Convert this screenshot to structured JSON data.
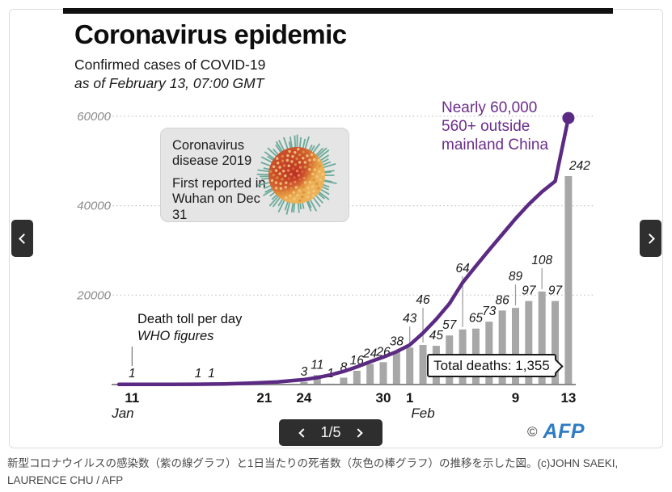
{
  "colors": {
    "line_purple": "#5b2a82",
    "annotation_purple": "#6b2d8b",
    "bar_gray": "#a7a7a7",
    "afp_blue": "#2e7cc3",
    "button_dark": "#2f2f2f"
  },
  "chart_data": {
    "type": "combo",
    "title": "Coronavirus epidemic",
    "subtitle": "Confirmed cases of COVID-19",
    "dateline": "as of February 13, 07:00 GMT",
    "infobox": {
      "para1": "Coronavirus disease 2019",
      "para2": "First reported in Wuhan on Dec 31"
    },
    "x_axis": {
      "unit": "days since Jan 10",
      "ticks": [
        {
          "label": "11",
          "day": 1
        },
        {
          "label": "21",
          "day": 11
        },
        {
          "label": "24",
          "day": 14
        },
        {
          "label": "30",
          "day": 20
        },
        {
          "label": "1",
          "day": 22
        },
        {
          "label": "9",
          "day": 30
        },
        {
          "label": "13",
          "day": 34
        }
      ],
      "months": [
        {
          "label": "Jan",
          "day": 0.3
        },
        {
          "label": "Feb",
          "day": 23
        }
      ]
    },
    "y_axis": {
      "ticks": [
        {
          "label": "20000",
          "value": 20000
        },
        {
          "label": "40000",
          "value": 40000
        },
        {
          "label": "60000",
          "value": 60000
        }
      ],
      "range": [
        0,
        62000
      ],
      "gridlines": "dotted"
    },
    "line_series": {
      "name": "Confirmed cases of COVID-19 (cumulative)",
      "color": "#5b2a82",
      "annotation": [
        "Nearly 60,000",
        "560+ outside",
        "mainland China"
      ],
      "points": [
        [
          0,
          40
        ],
        [
          2,
          45
        ],
        [
          4,
          55
        ],
        [
          6,
          80
        ],
        [
          8,
          130
        ],
        [
          10,
          300
        ],
        [
          12,
          600
        ],
        [
          13,
          850
        ],
        [
          14,
          1100
        ],
        [
          15,
          1550
        ],
        [
          16,
          2150
        ],
        [
          17,
          2950
        ],
        [
          18,
          3950
        ],
        [
          19,
          5100
        ],
        [
          20,
          6150
        ],
        [
          21,
          7350
        ],
        [
          22,
          8850
        ],
        [
          23,
          11500
        ],
        [
          24,
          14600
        ],
        [
          25,
          18100
        ],
        [
          26,
          22800
        ],
        [
          27,
          26500
        ],
        [
          28,
          30100
        ],
        [
          29,
          33600
        ],
        [
          30,
          37100
        ],
        [
          31,
          40300
        ],
        [
          32,
          43100
        ],
        [
          33,
          45500
        ],
        [
          34,
          59600
        ]
      ]
    },
    "bar_series": {
      "name": "Death toll per day",
      "source_note": [
        "Death toll per day",
        "WHO figures"
      ],
      "color": "#a7a7a7",
      "total_label": "Total deaths: 1,355",
      "bars": [
        {
          "date": "Jan 11",
          "day": 1,
          "value": 1,
          "note_leader": true
        },
        {
          "date": "Jan 16",
          "day": 6,
          "value": 1
        },
        {
          "date": "Jan 17",
          "day": 7,
          "value": 1
        },
        {
          "date": "Jan 24",
          "day": 14,
          "value": 3
        },
        {
          "date": "Jan 25",
          "day": 15,
          "value": 11
        },
        {
          "date": "Jan 26",
          "day": 16,
          "value": 1
        },
        {
          "date": "Jan 27",
          "day": 17,
          "value": 8
        },
        {
          "date": "Jan 28",
          "day": 18,
          "value": 16
        },
        {
          "date": "Jan 29",
          "day": 19,
          "value": 24
        },
        {
          "date": "Jan 30",
          "day": 20,
          "value": 26
        },
        {
          "date": "Jan 31",
          "day": 21,
          "value": 38
        },
        {
          "date": "Feb 1",
          "day": 22,
          "value": 43,
          "leader_len": 25
        },
        {
          "date": "Feb 2",
          "day": 23,
          "value": 46,
          "leader_len": 45
        },
        {
          "date": "Feb 3",
          "day": 24,
          "value": 45
        },
        {
          "date": "Feb 4",
          "day": 25,
          "value": 57
        },
        {
          "date": "Feb 5",
          "day": 26,
          "value": 64,
          "leader_len": 65
        },
        {
          "date": "Feb 6",
          "day": 27,
          "value": 65
        },
        {
          "date": "Feb 7",
          "day": 28,
          "value": 73
        },
        {
          "date": "Feb 8",
          "day": 29,
          "value": 86
        },
        {
          "date": "Feb 9",
          "day": 30,
          "value": 89,
          "leader_len": 28
        },
        {
          "date": "Feb 10",
          "day": 31,
          "value": 97
        },
        {
          "date": "Feb 11",
          "day": 32,
          "value": 108,
          "leader_len": 28
        },
        {
          "date": "Feb 12",
          "day": 33,
          "value": 97
        },
        {
          "date": "Feb 13",
          "day": 34,
          "value": 242,
          "label_dx": 14
        }
      ]
    },
    "credit": {
      "symbol": "©",
      "agency": "AFP"
    }
  },
  "carousel": {
    "prev_icon": "chevron-left",
    "next_icon": "chevron-right"
  },
  "pager": {
    "page_indicator": "1/5"
  },
  "caption": {
    "text": "新型コロナウイルスの感染数（紫の線グラフ）と1日当たりの死者数（灰色の棒グラフ）の推移を示した図。(c)JOHN SAEKI, LAURENCE CHU / AFP"
  }
}
